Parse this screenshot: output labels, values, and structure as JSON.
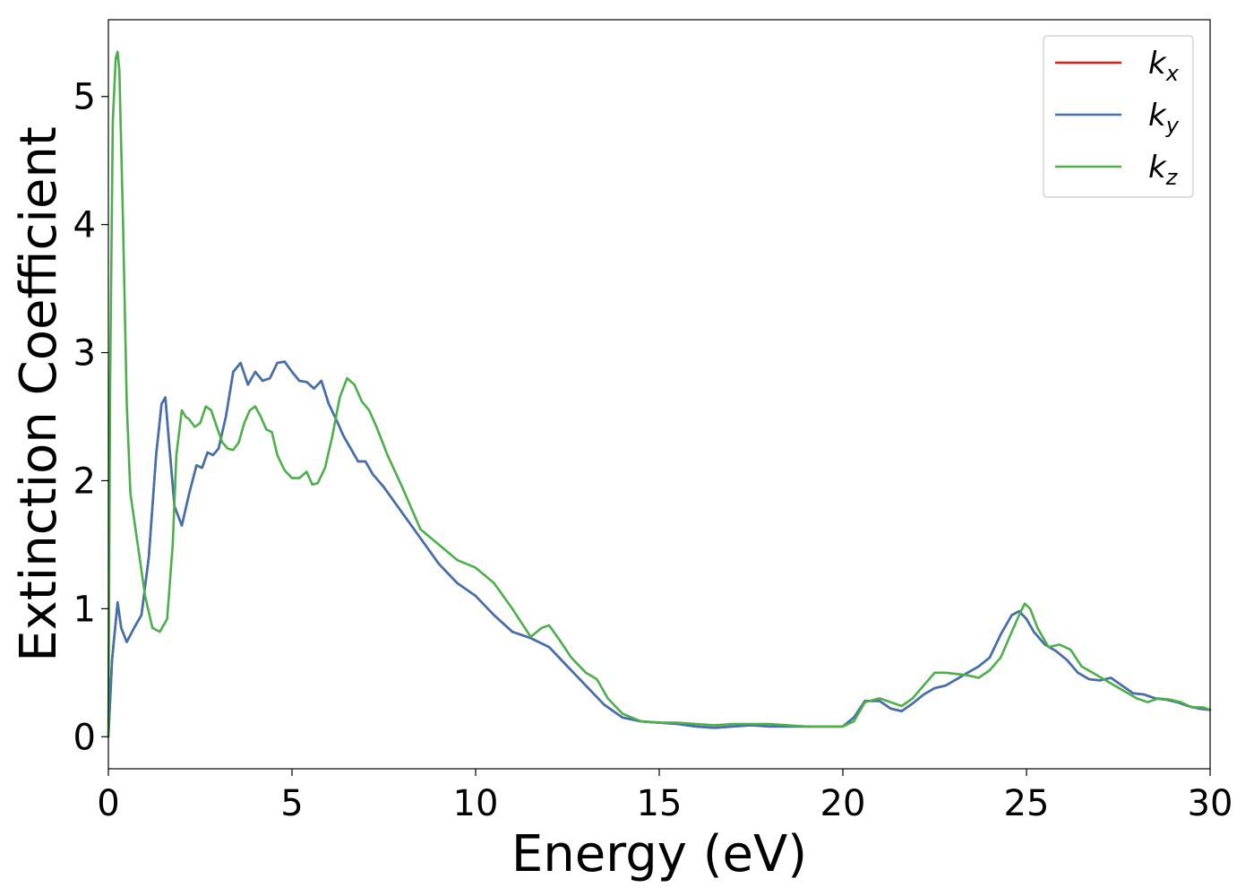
{
  "chart_data": {
    "type": "line",
    "xlabel": "Energy (eV)",
    "ylabel": "Extinction Coefficient",
    "xlim": [
      0,
      30
    ],
    "ylim": [
      -0.25,
      5.6
    ],
    "x_ticks": [
      "0",
      "5",
      "10",
      "15",
      "20",
      "25",
      "30"
    ],
    "y_ticks": [
      "0",
      "1",
      "2",
      "3",
      "4",
      "5"
    ],
    "grid": false,
    "legend_position": "top-right",
    "series": [
      {
        "name": "k_x",
        "label_main": "k",
        "label_sub": "x",
        "color": "#e41a1c",
        "x": [
          0,
          0.1,
          0.25,
          0.35,
          0.5,
          0.7,
          0.9,
          1.1,
          1.3,
          1.45,
          1.55,
          1.65,
          1.8,
          2.0,
          2.2,
          2.4,
          2.55,
          2.7,
          2.85,
          3.0,
          3.2,
          3.4,
          3.6,
          3.8,
          4.0,
          4.2,
          4.4,
          4.6,
          4.8,
          5.0,
          5.2,
          5.4,
          5.6,
          5.8,
          6.0,
          6.2,
          6.4,
          6.6,
          6.8,
          7.0,
          7.2,
          7.5,
          8.0,
          8.5,
          9.0,
          9.5,
          10.0,
          10.5,
          11.0,
          11.5,
          12.0,
          12.5,
          13.0,
          13.5,
          14.0,
          14.5,
          15.0,
          15.5,
          16.0,
          16.5,
          17.0,
          17.5,
          18.0,
          18.5,
          19.0,
          19.5,
          20.0,
          20.3,
          20.6,
          21.0,
          21.3,
          21.6,
          21.9,
          22.2,
          22.5,
          22.8,
          23.1,
          23.4,
          23.7,
          24.0,
          24.3,
          24.6,
          24.8,
          25.0,
          25.2,
          25.5,
          25.8,
          26.1,
          26.4,
          26.7,
          27.0,
          27.3,
          27.6,
          27.9,
          28.2,
          28.5,
          28.8,
          29.1,
          29.4,
          29.7,
          30.0
        ],
        "values": [
          0.0,
          0.6,
          1.05,
          0.85,
          0.74,
          0.85,
          0.95,
          1.4,
          2.2,
          2.6,
          2.65,
          2.3,
          1.8,
          1.65,
          1.9,
          2.12,
          2.1,
          2.22,
          2.2,
          2.25,
          2.5,
          2.85,
          2.92,
          2.75,
          2.85,
          2.78,
          2.8,
          2.92,
          2.93,
          2.85,
          2.78,
          2.77,
          2.72,
          2.78,
          2.6,
          2.48,
          2.35,
          2.25,
          2.15,
          2.15,
          2.05,
          1.95,
          1.75,
          1.55,
          1.35,
          1.2,
          1.1,
          0.95,
          0.82,
          0.77,
          0.7,
          0.55,
          0.4,
          0.25,
          0.15,
          0.12,
          0.11,
          0.1,
          0.08,
          0.07,
          0.08,
          0.09,
          0.08,
          0.08,
          0.08,
          0.08,
          0.08,
          0.15,
          0.28,
          0.28,
          0.22,
          0.2,
          0.26,
          0.33,
          0.38,
          0.4,
          0.45,
          0.5,
          0.55,
          0.62,
          0.8,
          0.95,
          0.98,
          0.92,
          0.82,
          0.72,
          0.67,
          0.6,
          0.5,
          0.45,
          0.44,
          0.46,
          0.4,
          0.34,
          0.33,
          0.3,
          0.29,
          0.27,
          0.24,
          0.22,
          0.21
        ]
      },
      {
        "name": "k_y",
        "label_main": "k",
        "label_sub": "y",
        "color": "#3f72ae",
        "x": [
          0,
          0.1,
          0.25,
          0.35,
          0.5,
          0.7,
          0.9,
          1.1,
          1.3,
          1.45,
          1.55,
          1.65,
          1.8,
          2.0,
          2.2,
          2.4,
          2.55,
          2.7,
          2.85,
          3.0,
          3.2,
          3.4,
          3.6,
          3.8,
          4.0,
          4.2,
          4.4,
          4.6,
          4.8,
          5.0,
          5.2,
          5.4,
          5.6,
          5.8,
          6.0,
          6.2,
          6.4,
          6.6,
          6.8,
          7.0,
          7.2,
          7.5,
          8.0,
          8.5,
          9.0,
          9.5,
          10.0,
          10.5,
          11.0,
          11.5,
          12.0,
          12.5,
          13.0,
          13.5,
          14.0,
          14.5,
          15.0,
          15.5,
          16.0,
          16.5,
          17.0,
          17.5,
          18.0,
          18.5,
          19.0,
          19.5,
          20.0,
          20.3,
          20.6,
          21.0,
          21.3,
          21.6,
          21.9,
          22.2,
          22.5,
          22.8,
          23.1,
          23.4,
          23.7,
          24.0,
          24.3,
          24.6,
          24.8,
          25.0,
          25.2,
          25.5,
          25.8,
          26.1,
          26.4,
          26.7,
          27.0,
          27.3,
          27.6,
          27.9,
          28.2,
          28.5,
          28.8,
          29.1,
          29.4,
          29.7,
          30.0
        ],
        "values": [
          0.0,
          0.6,
          1.05,
          0.85,
          0.74,
          0.85,
          0.95,
          1.4,
          2.2,
          2.6,
          2.65,
          2.3,
          1.8,
          1.65,
          1.9,
          2.12,
          2.1,
          2.22,
          2.2,
          2.25,
          2.5,
          2.85,
          2.92,
          2.75,
          2.85,
          2.78,
          2.8,
          2.92,
          2.93,
          2.85,
          2.78,
          2.77,
          2.72,
          2.78,
          2.6,
          2.48,
          2.35,
          2.25,
          2.15,
          2.15,
          2.05,
          1.95,
          1.75,
          1.55,
          1.35,
          1.2,
          1.1,
          0.95,
          0.82,
          0.77,
          0.7,
          0.55,
          0.4,
          0.25,
          0.15,
          0.12,
          0.11,
          0.1,
          0.08,
          0.07,
          0.08,
          0.09,
          0.08,
          0.08,
          0.08,
          0.08,
          0.08,
          0.15,
          0.28,
          0.28,
          0.22,
          0.2,
          0.26,
          0.33,
          0.38,
          0.4,
          0.45,
          0.5,
          0.55,
          0.62,
          0.8,
          0.95,
          0.98,
          0.92,
          0.82,
          0.72,
          0.67,
          0.6,
          0.5,
          0.45,
          0.44,
          0.46,
          0.4,
          0.34,
          0.33,
          0.3,
          0.29,
          0.27,
          0.24,
          0.22,
          0.21
        ]
      },
      {
        "name": "k_z",
        "label_main": "k",
        "label_sub": "z",
        "color": "#4daf4a",
        "x": [
          0,
          0.05,
          0.12,
          0.2,
          0.25,
          0.3,
          0.4,
          0.5,
          0.6,
          0.7,
          0.8,
          1.0,
          1.2,
          1.4,
          1.6,
          1.75,
          1.85,
          2.0,
          2.1,
          2.2,
          2.35,
          2.5,
          2.65,
          2.8,
          2.95,
          3.1,
          3.25,
          3.4,
          3.55,
          3.7,
          3.85,
          4.0,
          4.15,
          4.3,
          4.45,
          4.6,
          4.8,
          5.0,
          5.2,
          5.4,
          5.55,
          5.7,
          5.9,
          6.1,
          6.3,
          6.5,
          6.7,
          6.9,
          7.1,
          7.3,
          7.6,
          8.0,
          8.5,
          9.0,
          9.5,
          10.0,
          10.5,
          11.0,
          11.5,
          11.8,
          12.0,
          12.3,
          12.6,
          13.0,
          13.3,
          13.6,
          14.0,
          14.5,
          15.0,
          15.5,
          16.0,
          16.5,
          17.0,
          17.5,
          18.0,
          18.5,
          19.0,
          19.5,
          20.0,
          20.3,
          20.6,
          21.0,
          21.3,
          21.6,
          21.9,
          22.2,
          22.5,
          22.8,
          23.1,
          23.4,
          23.7,
          24.0,
          24.3,
          24.6,
          24.8,
          24.95,
          25.1,
          25.3,
          25.6,
          25.9,
          26.2,
          26.5,
          26.8,
          27.1,
          27.4,
          27.7,
          28.0,
          28.3,
          28.6,
          28.9,
          29.2,
          29.5,
          29.8,
          30.0
        ],
        "values": [
          0.0,
          2.8,
          4.8,
          5.3,
          5.35,
          5.2,
          4.0,
          2.6,
          1.9,
          1.7,
          1.5,
          1.1,
          0.85,
          0.82,
          0.92,
          1.5,
          2.2,
          2.55,
          2.5,
          2.48,
          2.42,
          2.45,
          2.58,
          2.55,
          2.42,
          2.3,
          2.25,
          2.24,
          2.3,
          2.45,
          2.55,
          2.58,
          2.5,
          2.4,
          2.38,
          2.2,
          2.08,
          2.02,
          2.02,
          2.07,
          1.97,
          1.98,
          2.1,
          2.35,
          2.65,
          2.8,
          2.75,
          2.62,
          2.55,
          2.42,
          2.2,
          1.95,
          1.62,
          1.5,
          1.38,
          1.32,
          1.2,
          1.0,
          0.78,
          0.85,
          0.87,
          0.75,
          0.62,
          0.5,
          0.45,
          0.3,
          0.18,
          0.12,
          0.11,
          0.11,
          0.1,
          0.09,
          0.1,
          0.1,
          0.1,
          0.09,
          0.08,
          0.08,
          0.08,
          0.12,
          0.27,
          0.3,
          0.27,
          0.24,
          0.3,
          0.4,
          0.5,
          0.5,
          0.49,
          0.48,
          0.46,
          0.52,
          0.62,
          0.82,
          0.95,
          1.04,
          1.0,
          0.85,
          0.7,
          0.72,
          0.68,
          0.55,
          0.5,
          0.45,
          0.4,
          0.35,
          0.3,
          0.27,
          0.3,
          0.29,
          0.27,
          0.23,
          0.23,
          0.21
        ]
      }
    ]
  }
}
